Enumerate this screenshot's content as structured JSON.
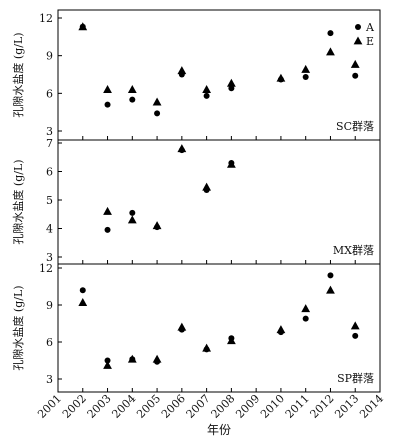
{
  "chart_data": {
    "type": "scatter",
    "xlabel": "年份",
    "x_ticks": [
      2001,
      2002,
      2003,
      2004,
      2005,
      2006,
      2007,
      2008,
      2009,
      2010,
      2011,
      2012,
      2013,
      2014
    ],
    "xlim": [
      2001,
      2014
    ],
    "legend": {
      "placement": "top-right",
      "panel": 0,
      "entries": [
        {
          "name": "A",
          "marker": "circle"
        },
        {
          "name": "E",
          "marker": "triangle"
        }
      ]
    },
    "panels": [
      {
        "label": "SC群落",
        "ylabel": "孔隙水盐度 (g/L)",
        "ylim": [
          3,
          12
        ],
        "yticks": [
          3,
          6,
          9,
          12
        ],
        "series": [
          {
            "name": "A",
            "marker": "circle",
            "x": [
              2002,
              2003,
              2004,
              2005,
              2006,
              2007,
              2008,
              2010,
              2011,
              2012,
              2013
            ],
            "y": [
              11.3,
              5.1,
              5.5,
              4.4,
              7.5,
              5.8,
              6.4,
              7.1,
              7.3,
              10.8,
              7.4
            ]
          },
          {
            "name": "E",
            "marker": "triangle",
            "x": [
              2002,
              2003,
              2004,
              2005,
              2006,
              2007,
              2008,
              2010,
              2011,
              2012,
              2013
            ],
            "y": [
              11.3,
              6.3,
              6.3,
              5.3,
              7.8,
              6.3,
              6.8,
              7.2,
              7.9,
              9.3,
              8.3
            ]
          }
        ]
      },
      {
        "label": "MX群落",
        "ylabel": "孔隙水盐度 (g/L)",
        "ylim": [
          3,
          7
        ],
        "yticks": [
          3,
          4,
          5,
          6,
          7
        ],
        "series": [
          {
            "name": "A",
            "marker": "circle",
            "x": [
              2003,
              2004,
              2005,
              2006,
              2007,
              2008
            ],
            "y": [
              3.95,
              4.55,
              4.05,
              6.75,
              5.35,
              6.3
            ]
          },
          {
            "name": "E",
            "marker": "triangle",
            "x": [
              2003,
              2004,
              2005,
              2006,
              2007,
              2008
            ],
            "y": [
              4.6,
              4.3,
              4.1,
              6.8,
              5.45,
              6.25
            ]
          }
        ]
      },
      {
        "label": "SP群落",
        "ylabel": "孔隙水盐度 (g/L)",
        "ylim": [
          3,
          12
        ],
        "yticks": [
          3,
          6,
          9,
          12
        ],
        "series": [
          {
            "name": "A",
            "marker": "circle",
            "x": [
              2002,
              2003,
              2004,
              2005,
              2006,
              2007,
              2008,
              2010,
              2011,
              2012,
              2013
            ],
            "y": [
              10.2,
              4.5,
              4.6,
              4.4,
              7.0,
              5.4,
              6.3,
              6.8,
              7.9,
              11.4,
              6.5
            ]
          },
          {
            "name": "E",
            "marker": "triangle",
            "x": [
              2002,
              2003,
              2004,
              2005,
              2006,
              2007,
              2008,
              2010,
              2011,
              2012,
              2013
            ],
            "y": [
              9.2,
              4.1,
              4.6,
              4.6,
              7.2,
              5.5,
              6.1,
              7.0,
              8.7,
              10.2,
              7.3
            ]
          }
        ]
      }
    ]
  }
}
